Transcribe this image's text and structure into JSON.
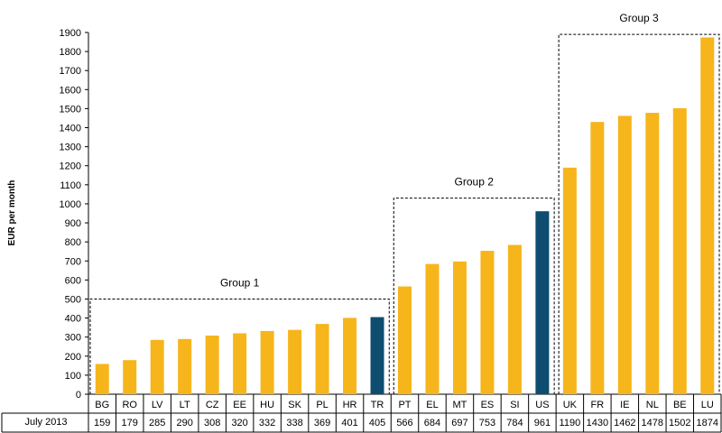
{
  "chart_data": {
    "type": "bar",
    "ylabel": "EUR per month",
    "ylim": [
      0,
      1900
    ],
    "ytick_step": 100,
    "row_label": "July 2013",
    "categories": [
      "BG",
      "RO",
      "LV",
      "LT",
      "CZ",
      "EE",
      "HU",
      "SK",
      "PL",
      "HR",
      "TR",
      "PT",
      "EL",
      "MT",
      "ES",
      "SI",
      "US",
      "UK",
      "FR",
      "IE",
      "NL",
      "BE",
      "LU"
    ],
    "values": [
      159,
      179,
      285,
      290,
      308,
      320,
      332,
      338,
      369,
      401,
      405,
      566,
      684,
      697,
      753,
      784,
      961,
      1190,
      1430,
      1462,
      1478,
      1502,
      1874
    ],
    "highlighted": [
      "TR",
      "US"
    ],
    "groups": [
      {
        "label": "Group 1",
        "from": "BG",
        "to": "TR",
        "box_top_value": 500
      },
      {
        "label": "Group 2",
        "from": "PT",
        "to": "US",
        "box_top_value": 1030
      },
      {
        "label": "Group 3",
        "from": "UK",
        "to": "LU",
        "box_top_value": 1890
      }
    ],
    "colors": {
      "bar": "#F7B51C",
      "highlight": "#0E4D70",
      "axis": "#000000"
    }
  }
}
